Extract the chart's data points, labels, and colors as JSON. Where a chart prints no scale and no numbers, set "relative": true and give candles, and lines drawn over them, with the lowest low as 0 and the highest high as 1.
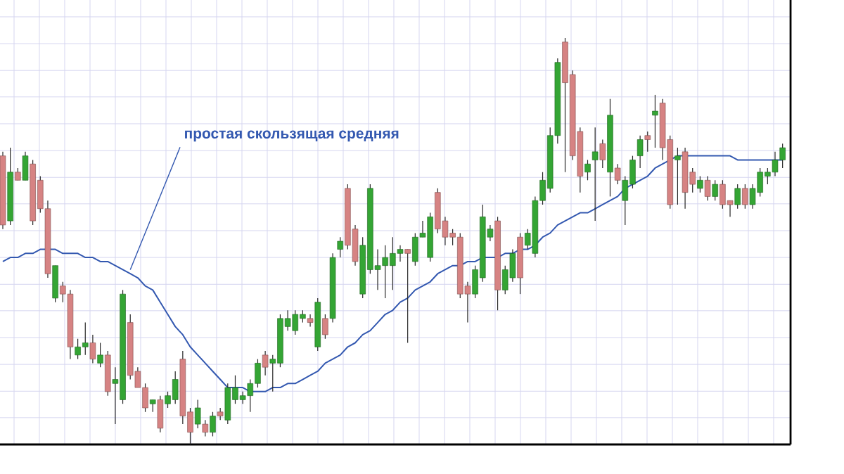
{
  "chart_data": {
    "type": "candlestick",
    "relative": true,
    "grid": true,
    "annotations": [
      "простая скользящая средняя"
    ],
    "categories": [
      null,
      null,
      null,
      null,
      null,
      null,
      null,
      null,
      null,
      null,
      null,
      null,
      null,
      null,
      null,
      null,
      null,
      null,
      null,
      null,
      null,
      null,
      null,
      null,
      null,
      null,
      null,
      null,
      null,
      null,
      null,
      null,
      null,
      null,
      null,
      null,
      null,
      null,
      null,
      null,
      null,
      null,
      null,
      null,
      null,
      null,
      null,
      null,
      null,
      null,
      null,
      null,
      null,
      null,
      null,
      null,
      null,
      null,
      null,
      null,
      null,
      null,
      null,
      null,
      null,
      null,
      null,
      null,
      null,
      null,
      null,
      null,
      null,
      null,
      null,
      null,
      null,
      null,
      null,
      null,
      null,
      null,
      null,
      null,
      null,
      null,
      null,
      null,
      null,
      null,
      null,
      null,
      null,
      null,
      null,
      null,
      null,
      null,
      null,
      null,
      null,
      null,
      null,
      null,
      null
    ],
    "ohlc": [
      [
        0.71,
        0.72,
        0.53,
        0.54
      ],
      [
        0.55,
        0.73,
        0.54,
        0.67
      ],
      [
        0.67,
        0.68,
        0.65,
        0.65
      ],
      [
        0.65,
        0.72,
        0.65,
        0.71
      ],
      [
        0.69,
        0.7,
        0.54,
        0.55
      ],
      [
        0.65,
        0.66,
        0.57,
        0.58
      ],
      [
        0.58,
        0.6,
        0.41,
        0.42
      ],
      [
        0.36,
        0.44,
        0.35,
        0.44
      ],
      [
        0.39,
        0.4,
        0.35,
        0.37
      ],
      [
        0.37,
        0.38,
        0.21,
        0.24
      ],
      [
        0.22,
        0.26,
        0.21,
        0.24
      ],
      [
        0.24,
        0.3,
        0.22,
        0.25
      ],
      [
        0.25,
        0.27,
        0.2,
        0.21
      ],
      [
        0.2,
        0.25,
        0.19,
        0.22
      ],
      [
        0.22,
        0.23,
        0.12,
        0.13
      ],
      [
        0.15,
        0.19,
        0.05,
        0.16
      ],
      [
        0.11,
        0.38,
        0.1,
        0.37
      ],
      [
        0.3,
        0.32,
        0.16,
        0.17
      ],
      [
        0.18,
        0.19,
        0.14,
        0.14
      ],
      [
        0.14,
        0.15,
        0.08,
        0.09
      ],
      [
        0.1,
        0.11,
        0.08,
        0.11
      ],
      [
        0.11,
        0.12,
        0.03,
        0.04
      ],
      [
        0.1,
        0.13,
        0.09,
        0.12
      ],
      [
        0.11,
        0.18,
        0.1,
        0.16
      ],
      [
        0.21,
        0.23,
        0.05,
        0.07
      ],
      [
        0.08,
        0.09,
        0.0,
        0.03
      ],
      [
        0.05,
        0.11,
        0.04,
        0.09
      ],
      [
        0.05,
        0.06,
        0.02,
        0.03
      ],
      [
        0.03,
        0.08,
        0.02,
        0.07
      ],
      [
        0.08,
        0.09,
        0.06,
        0.07
      ],
      [
        0.06,
        0.15,
        0.05,
        0.14
      ],
      [
        0.11,
        0.17,
        0.1,
        0.14
      ],
      [
        0.11,
        0.13,
        0.1,
        0.12
      ],
      [
        0.12,
        0.16,
        0.08,
        0.15
      ],
      [
        0.15,
        0.21,
        0.14,
        0.2
      ],
      [
        0.22,
        0.23,
        0.17,
        0.19
      ],
      [
        0.2,
        0.22,
        0.13,
        0.21
      ],
      [
        0.2,
        0.32,
        0.19,
        0.31
      ],
      [
        0.29,
        0.33,
        0.28,
        0.31
      ],
      [
        0.28,
        0.33,
        0.27,
        0.32
      ],
      [
        0.31,
        0.33,
        0.3,
        0.32
      ],
      [
        0.31,
        0.32,
        0.29,
        0.3
      ],
      [
        0.24,
        0.36,
        0.23,
        0.35
      ],
      [
        0.31,
        0.32,
        0.26,
        0.27
      ],
      [
        0.31,
        0.47,
        0.3,
        0.46
      ],
      [
        0.48,
        0.51,
        0.46,
        0.5
      ],
      [
        0.63,
        0.64,
        0.48,
        0.49
      ],
      [
        0.53,
        0.54,
        0.44,
        0.45
      ],
      [
        0.37,
        0.51,
        0.36,
        0.49
      ],
      [
        0.43,
        0.64,
        0.42,
        0.63
      ],
      [
        0.43,
        0.48,
        0.38,
        0.44
      ],
      [
        0.44,
        0.49,
        0.36,
        0.46
      ],
      [
        0.44,
        0.51,
        0.38,
        0.47
      ],
      [
        0.47,
        0.49,
        0.45,
        0.48
      ],
      [
        0.48,
        0.48,
        0.25,
        0.47
      ],
      [
        0.45,
        0.52,
        0.44,
        0.51
      ],
      [
        0.51,
        0.55,
        0.51,
        0.52
      ],
      [
        0.46,
        0.57,
        0.45,
        0.56
      ],
      [
        0.62,
        0.63,
        0.52,
        0.53
      ],
      [
        0.55,
        0.56,
        0.49,
        0.51
      ],
      [
        0.52,
        0.53,
        0.49,
        0.51
      ],
      [
        0.51,
        0.52,
        0.36,
        0.37
      ],
      [
        0.39,
        0.4,
        0.3,
        0.37
      ],
      [
        0.37,
        0.44,
        0.36,
        0.43
      ],
      [
        0.41,
        0.59,
        0.4,
        0.56
      ],
      [
        0.51,
        0.54,
        0.5,
        0.53
      ],
      [
        0.55,
        0.56,
        0.33,
        0.38
      ],
      [
        0.38,
        0.44,
        0.37,
        0.43
      ],
      [
        0.41,
        0.48,
        0.4,
        0.47
      ],
      [
        0.51,
        0.52,
        0.37,
        0.41
      ],
      [
        0.49,
        0.53,
        0.48,
        0.52
      ],
      [
        0.47,
        0.61,
        0.46,
        0.6
      ],
      [
        0.6,
        0.67,
        0.59,
        0.65
      ],
      [
        0.63,
        0.78,
        0.62,
        0.76
      ],
      [
        0.76,
        0.95,
        0.74,
        0.94
      ],
      [
        0.99,
        1.0,
        0.67,
        0.89
      ],
      [
        0.91,
        0.92,
        0.7,
        0.71
      ],
      [
        0.77,
        0.78,
        0.62,
        0.66
      ],
      [
        0.67,
        0.7,
        0.65,
        0.69
      ],
      [
        0.7,
        0.78,
        0.55,
        0.72
      ],
      [
        0.74,
        0.75,
        0.68,
        0.7
      ],
      [
        0.67,
        0.85,
        0.61,
        0.81
      ],
      [
        0.68,
        0.69,
        0.64,
        0.65
      ],
      [
        0.6,
        0.66,
        0.54,
        0.65
      ],
      [
        0.64,
        0.71,
        0.63,
        0.7
      ],
      [
        0.71,
        0.76,
        0.68,
        0.75
      ],
      [
        0.76,
        0.77,
        0.72,
        0.75
      ],
      [
        0.81,
        0.86,
        0.73,
        0.82
      ],
      [
        0.84,
        0.85,
        0.7,
        0.73
      ],
      [
        0.75,
        0.76,
        0.58,
        0.59
      ],
      [
        0.7,
        0.73,
        0.59,
        0.71
      ],
      [
        0.72,
        0.73,
        0.58,
        0.62
      ],
      [
        0.67,
        0.68,
        0.62,
        0.64
      ],
      [
        0.63,
        0.66,
        0.62,
        0.65
      ],
      [
        0.65,
        0.66,
        0.6,
        0.61
      ],
      [
        0.61,
        0.65,
        0.6,
        0.64
      ],
      [
        0.64,
        0.65,
        0.58,
        0.59
      ],
      [
        0.6,
        0.6,
        0.56,
        0.59
      ],
      [
        0.59,
        0.64,
        0.58,
        0.63
      ],
      [
        0.63,
        0.64,
        0.58,
        0.59
      ],
      [
        0.59,
        0.64,
        0.58,
        0.63
      ],
      [
        0.62,
        0.68,
        0.61,
        0.67
      ],
      [
        0.66,
        0.68,
        0.64,
        0.67
      ],
      [
        0.67,
        0.72,
        0.66,
        0.7
      ],
      [
        0.7,
        0.74,
        0.68,
        0.73
      ]
    ],
    "colors": [
      "#d68383",
      "#34a534",
      "#d68383",
      "#34a534",
      "#d68383",
      "#d68383",
      "#d68383",
      "#34a534",
      "#d68383",
      "#d68383",
      "#34a534",
      "#34a534",
      "#d68383",
      "#34a534",
      "#d68383",
      "#34a534",
      "#34a534",
      "#d68383",
      "#d68383",
      "#d68383",
      "#34a534",
      "#d68383",
      "#34a534",
      "#34a534",
      "#d68383",
      "#d68383",
      "#34a534",
      "#d68383",
      "#34a534",
      "#d68383",
      "#34a534",
      "#34a534",
      "#34a534",
      "#34a534",
      "#34a534",
      "#d68383",
      "#34a534",
      "#34a534",
      "#34a534",
      "#34a534",
      "#34a534",
      "#d68383",
      "#34a534",
      "#d68383",
      "#34a534",
      "#34a534",
      "#d68383",
      "#d68383",
      "#34a534",
      "#34a534",
      "#34a534",
      "#34a534",
      "#34a534",
      "#34a534",
      "#d68383",
      "#34a534",
      "#34a534",
      "#34a534",
      "#d68383",
      "#d68383",
      "#d68383",
      "#d68383",
      "#d68383",
      "#34a534",
      "#34a534",
      "#34a534",
      "#d68383",
      "#34a534",
      "#34a534",
      "#d68383",
      "#34a534",
      "#34a534",
      "#34a534",
      "#34a534",
      "#34a534",
      "#d68383",
      "#d68383",
      "#d68383",
      "#34a534",
      "#34a534",
      "#d68383",
      "#34a534",
      "#d68383",
      "#34a534",
      "#34a534",
      "#34a534",
      "#d68383",
      "#34a534",
      "#d68383",
      "#d68383",
      "#34a534",
      "#d68383",
      "#d68383",
      "#34a534",
      "#d68383",
      "#34a534",
      "#d68383",
      "#d68383",
      "#34a534",
      "#d68383",
      "#34a534",
      "#34a534",
      "#34a534",
      "#34a534",
      "#34a534"
    ],
    "series": [
      {
        "type": "line",
        "color": "#3358b0",
        "values": [
          0.45,
          0.46,
          0.46,
          0.47,
          0.47,
          0.48,
          0.48,
          0.48,
          0.47,
          0.47,
          0.47,
          0.46,
          0.46,
          0.45,
          0.45,
          0.44,
          0.43,
          0.42,
          0.41,
          0.39,
          0.38,
          0.35,
          0.32,
          0.29,
          0.27,
          0.24,
          0.22,
          0.2,
          0.18,
          0.16,
          0.14,
          0.14,
          0.14,
          0.13,
          0.13,
          0.13,
          0.14,
          0.14,
          0.15,
          0.15,
          0.16,
          0.17,
          0.18,
          0.2,
          0.21,
          0.22,
          0.24,
          0.25,
          0.27,
          0.28,
          0.3,
          0.32,
          0.33,
          0.35,
          0.36,
          0.38,
          0.39,
          0.4,
          0.42,
          0.43,
          0.44,
          0.44,
          0.45,
          0.45,
          0.46,
          0.46,
          0.46,
          0.47,
          0.47,
          0.48,
          0.48,
          0.49,
          0.51,
          0.52,
          0.54,
          0.55,
          0.56,
          0.57,
          0.57,
          0.58,
          0.59,
          0.6,
          0.61,
          0.63,
          0.64,
          0.65,
          0.66,
          0.68,
          0.69,
          0.7,
          0.71,
          0.71,
          0.71,
          0.71,
          0.71,
          0.71,
          0.71,
          0.71,
          0.7,
          0.7,
          0.7,
          0.7,
          0.7,
          0.7,
          0.7
        ]
      }
    ]
  }
}
